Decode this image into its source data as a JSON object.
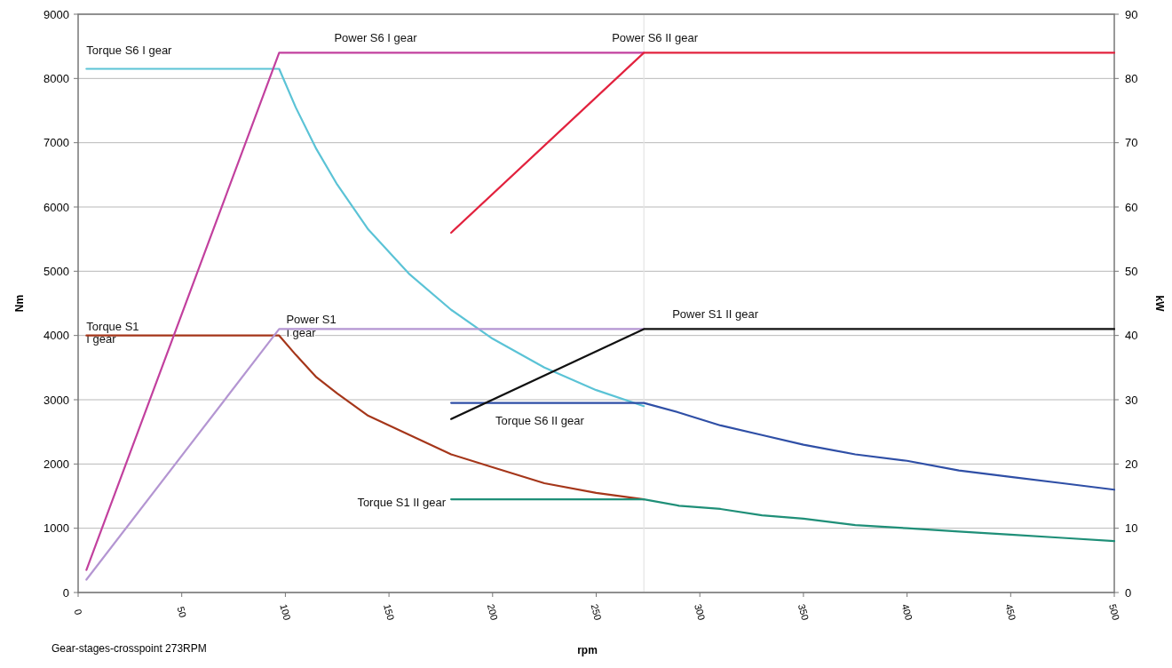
{
  "chart_data": {
    "type": "line",
    "xlabel": "rpm",
    "ylabel": "Nm",
    "y2label": "kW",
    "xlim": [
      0,
      500
    ],
    "xticks": [
      0,
      50,
      100,
      150,
      200,
      250,
      300,
      350,
      400,
      450,
      500
    ],
    "ylim": [
      0,
      9000
    ],
    "yticks": [
      0,
      1000,
      2000,
      3000,
      4000,
      5000,
      6000,
      7000,
      8000,
      9000
    ],
    "y2lim": [
      0,
      90
    ],
    "y2ticks": [
      0,
      10,
      20,
      30,
      40,
      50,
      60,
      70,
      80,
      90
    ],
    "grid": "y",
    "legend": false,
    "marker": "none",
    "line_style": "solid",
    "ref_lines": [
      {
        "axis": "x",
        "value": 273,
        "label": null,
        "color": "#e4e4e4"
      }
    ],
    "series": [
      {
        "name": "Torque S6 I gear",
        "color": "#5bc3d6",
        "x": [
          4,
          97,
          105,
          115,
          125,
          140,
          160,
          180,
          200,
          225,
          250,
          273
        ],
        "values": [
          8150,
          8150,
          7550,
          6900,
          6350,
          5650,
          4950,
          4400,
          3950,
          3500,
          3150,
          2900
        ]
      },
      {
        "name": "Torque S1\nI gear",
        "color": "#a5361a",
        "x": [
          4,
          97,
          105,
          115,
          125,
          140,
          160,
          180,
          200,
          225,
          250,
          273
        ],
        "values": [
          4000,
          4000,
          3700,
          3350,
          3100,
          2750,
          2450,
          2150,
          1950,
          1700,
          1550,
          1450
        ]
      },
      {
        "name": "Torque S6 II gear",
        "color": "#2f4fa6",
        "x": [
          180,
          273,
          290,
          310,
          330,
          350,
          375,
          400,
          425,
          450,
          475,
          500
        ],
        "values": [
          2950,
          2950,
          2800,
          2600,
          2450,
          2300,
          2150,
          2050,
          1900,
          1800,
          1700,
          1600
        ]
      },
      {
        "name": "Torque S1 II gear",
        "color": "#1f8f78",
        "x": [
          180,
          273,
          290,
          310,
          330,
          350,
          375,
          400,
          425,
          450,
          475,
          500
        ],
        "values": [
          1450,
          1450,
          1350,
          1300,
          1200,
          1150,
          1050,
          1000,
          950,
          900,
          850,
          800
        ]
      },
      {
        "name": "Power S6 I gear",
        "color": "#c2409e",
        "axis": "y2",
        "x": [
          4,
          97,
          273
        ],
        "values": [
          3.5,
          84,
          84
        ]
      },
      {
        "name": "Power S1\nI gear",
        "color": "#b496d2",
        "axis": "y2",
        "x": [
          4,
          97,
          273
        ],
        "values": [
          2,
          41,
          41
        ]
      },
      {
        "name": "Power S6 II gear",
        "color": "#e2223e",
        "axis": "y2",
        "x": [
          180,
          273,
          500
        ],
        "values": [
          56,
          84,
          84
        ]
      },
      {
        "name": "Power S1 II gear",
        "color": "#111111",
        "axis": "y2",
        "x": [
          180,
          273,
          500
        ],
        "values": [
          27,
          41,
          41
        ]
      }
    ],
    "annotations": [
      "Gear-stages-crosspoint 273RPM"
    ]
  }
}
